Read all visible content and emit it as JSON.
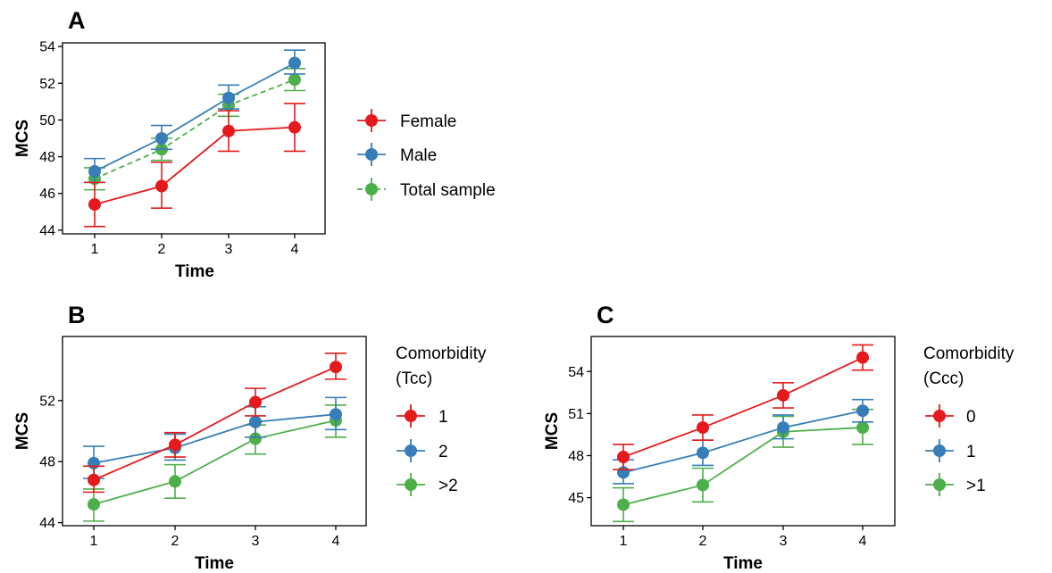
{
  "chart_data": [
    {
      "panel_label": "A",
      "type": "line",
      "x": [
        1,
        2,
        3,
        4
      ],
      "xlabel": "Time",
      "ylabel": "MCS",
      "ylim": [
        43.8,
        54.2
      ],
      "yticks": [
        44,
        46,
        48,
        50,
        52,
        54
      ],
      "legend_title": "",
      "legend_position": "right",
      "grid": false,
      "series": [
        {
          "name": "Female",
          "color": "#e41a1c",
          "dashed": false,
          "values": [
            45.4,
            46.4,
            49.4,
            49.6
          ],
          "lower": [
            44.2,
            45.2,
            48.3,
            48.3
          ],
          "upper": [
            46.6,
            47.7,
            50.5,
            50.9
          ]
        },
        {
          "name": "Male",
          "color": "#377eb8",
          "dashed": false,
          "values": [
            47.2,
            49.0,
            51.2,
            53.1
          ],
          "lower": [
            46.6,
            48.4,
            50.6,
            52.5
          ],
          "upper": [
            47.9,
            49.7,
            51.9,
            53.8
          ]
        },
        {
          "name": "Total sample",
          "color": "#4daf4a",
          "dashed": true,
          "values": [
            46.8,
            48.4,
            50.8,
            52.2
          ],
          "lower": [
            46.2,
            47.8,
            50.2,
            51.6
          ],
          "upper": [
            47.4,
            49.0,
            51.4,
            52.8
          ]
        }
      ]
    },
    {
      "panel_label": "B",
      "type": "line",
      "x": [
        1,
        2,
        3,
        4
      ],
      "xlabel": "Time",
      "ylabel": "MCS",
      "ylim": [
        43.8,
        56.2
      ],
      "yticks": [
        44,
        48,
        52
      ],
      "legend_title": "Comorbidity\n(Tcc)",
      "legend_position": "right",
      "grid": false,
      "series": [
        {
          "name": "1",
          "color": "#e41a1c",
          "dashed": false,
          "values": [
            46.8,
            49.1,
            51.9,
            54.2
          ],
          "lower": [
            46.0,
            48.3,
            51.0,
            53.4
          ],
          "upper": [
            47.7,
            49.9,
            52.8,
            55.1
          ]
        },
        {
          "name": "2",
          "color": "#377eb8",
          "dashed": false,
          "values": [
            47.9,
            48.9,
            50.6,
            51.1
          ],
          "lower": [
            46.9,
            48.1,
            49.6,
            50.1
          ],
          "upper": [
            49.0,
            49.8,
            51.6,
            52.2
          ]
        },
        {
          "name": ">2",
          "color": "#4daf4a",
          "dashed": false,
          "values": [
            45.2,
            46.7,
            49.5,
            50.7
          ],
          "lower": [
            44.1,
            45.6,
            48.5,
            49.6
          ],
          "upper": [
            46.2,
            47.8,
            50.4,
            51.7
          ]
        }
      ]
    },
    {
      "panel_label": "C",
      "type": "line",
      "x": [
        1,
        2,
        3,
        4
      ],
      "xlabel": "Time",
      "ylabel": "MCS",
      "ylim": [
        43.0,
        56.5
      ],
      "yticks": [
        45,
        48,
        51,
        54
      ],
      "legend_title": "Comorbidity\n(Ccc)",
      "legend_position": "right",
      "grid": false,
      "series": [
        {
          "name": "0",
          "color": "#e41a1c",
          "dashed": false,
          "values": [
            47.9,
            50.0,
            52.3,
            55.0
          ],
          "lower": [
            47.0,
            49.1,
            51.4,
            54.1
          ],
          "upper": [
            48.8,
            50.9,
            53.2,
            55.9
          ]
        },
        {
          "name": "1",
          "color": "#377eb8",
          "dashed": false,
          "values": [
            46.8,
            48.2,
            50.0,
            51.2
          ],
          "lower": [
            46.0,
            47.3,
            49.2,
            50.4
          ],
          "upper": [
            47.7,
            49.1,
            50.9,
            52.0
          ]
        },
        {
          "name": ">1",
          "color": "#4daf4a",
          "dashed": false,
          "values": [
            44.5,
            45.9,
            49.7,
            50.0
          ],
          "lower": [
            43.3,
            44.7,
            48.6,
            48.8
          ],
          "upper": [
            45.7,
            47.1,
            50.8,
            51.3
          ]
        }
      ]
    }
  ]
}
